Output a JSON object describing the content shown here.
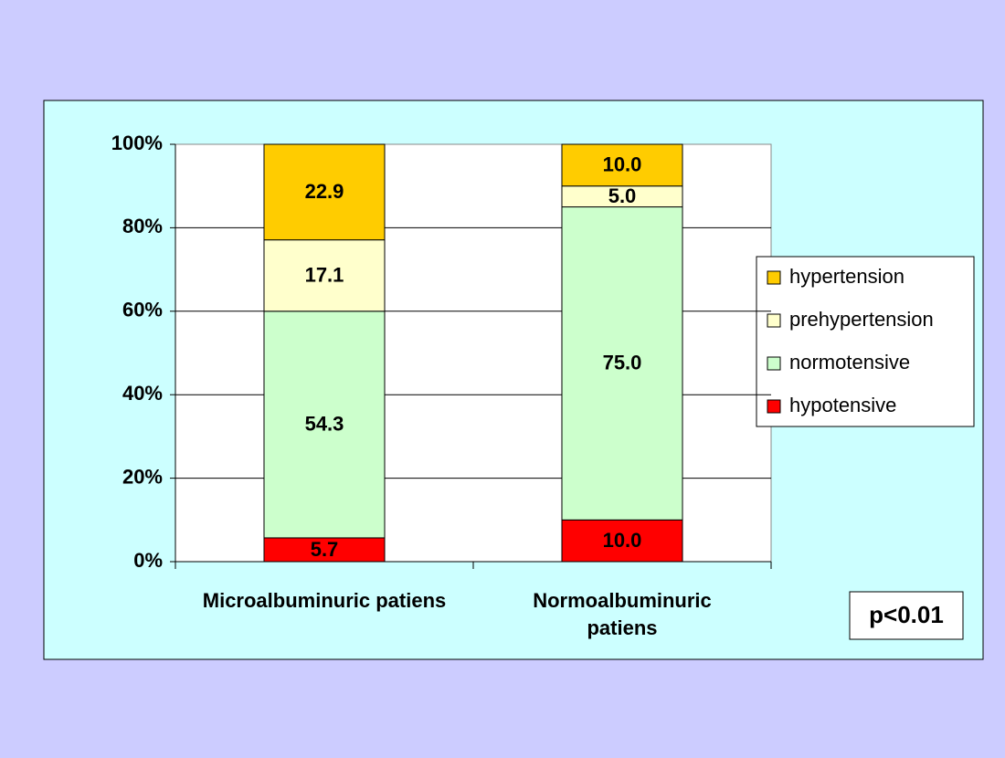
{
  "chart_data": {
    "type": "stacked_bar",
    "categories": [
      "Microalbuminuric patiens",
      "Normoalbuminuric patiens"
    ],
    "series": [
      {
        "name": "hypotensive",
        "color": "#ff0000",
        "values": [
          5.7,
          10
        ],
        "value_labels": [
          "5.7",
          "10.0"
        ]
      },
      {
        "name": "normotensive",
        "color": "#ccffcc",
        "values": [
          54.3,
          75
        ],
        "value_labels": [
          "54.3",
          "75.0"
        ]
      },
      {
        "name": "prehypertension",
        "color": "#ffffcc",
        "values": [
          17.1,
          5
        ],
        "value_labels": [
          "17.1",
          "5.0"
        ]
      },
      {
        "name": "hypertension",
        "color": "#ffcc00",
        "values": [
          22.9,
          10
        ],
        "value_labels": [
          "22.9",
          "10.0"
        ]
      }
    ],
    "ylim": [
      0,
      100
    ],
    "yticks": [
      {
        "value": 0,
        "label": "0%"
      },
      {
        "value": 20,
        "label": "20%"
      },
      {
        "value": 40,
        "label": "40%"
      },
      {
        "value": 60,
        "label": "60%"
      },
      {
        "value": 80,
        "label": "80%"
      },
      {
        "value": 100,
        "label": "100%"
      }
    ],
    "grid": true,
    "legend": "right",
    "annotations": [
      "p<0.01"
    ]
  }
}
